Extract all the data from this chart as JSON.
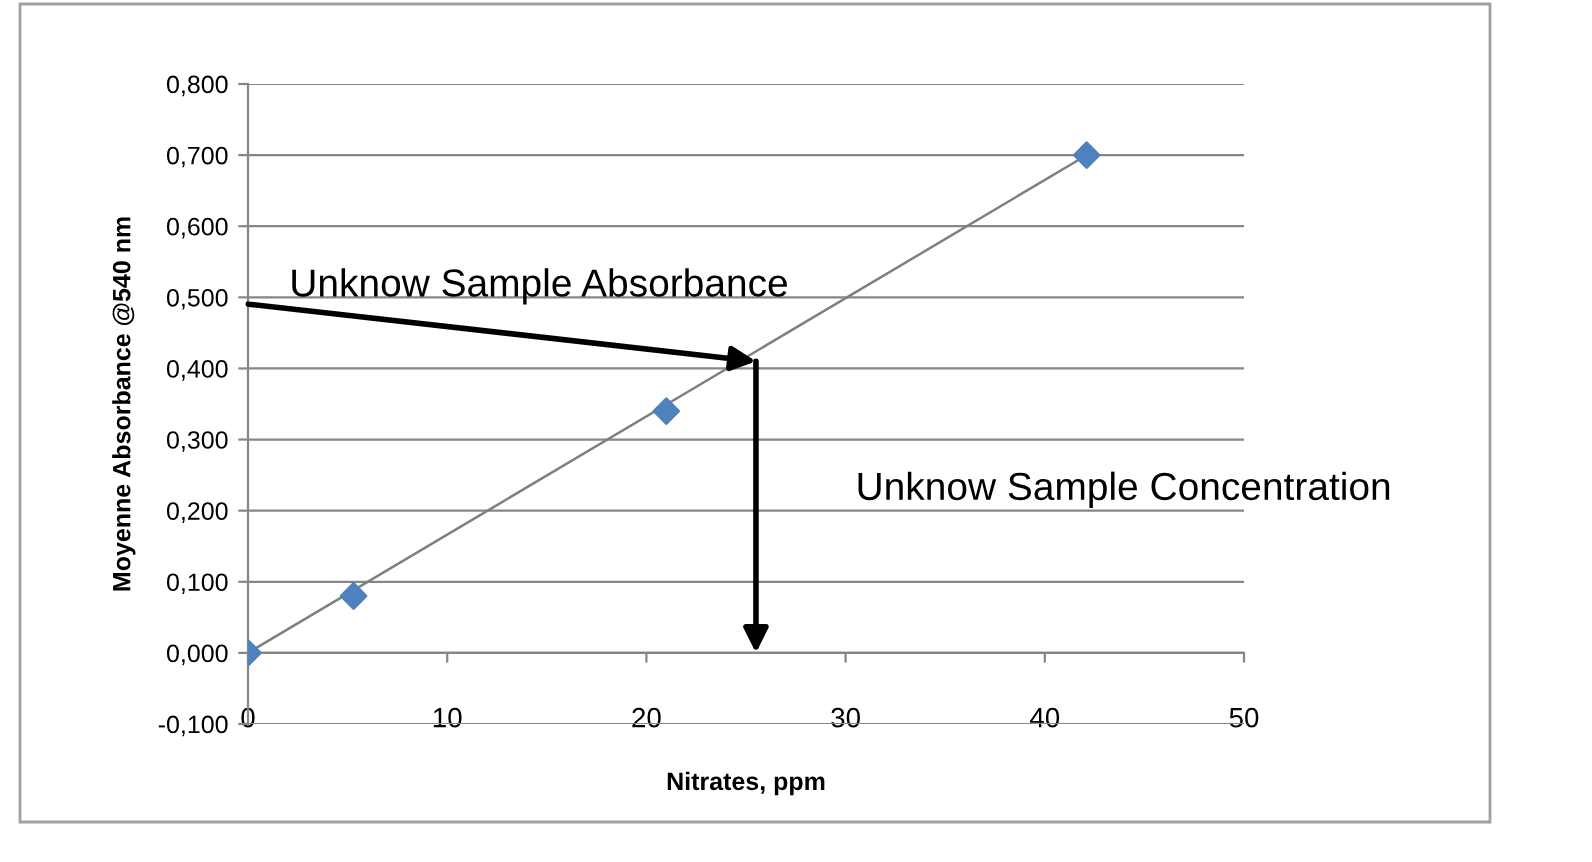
{
  "chart_data": {
    "type": "scatter",
    "xlabel": "Nitrates, ppm",
    "ylabel": "Moyenne Absorbance @540 nm",
    "series": [
      {
        "color": "#4f81bd",
        "marker": "diamond",
        "x": [
          0,
          5.3,
          21,
          42.1
        ],
        "values": [
          0,
          0.08,
          0.34,
          0.7
        ]
      },
      {
        "type": "line",
        "color": "#7f7f7f",
        "marker": "none",
        "x": [
          0,
          42.1
        ],
        "values": [
          0,
          0.7
        ]
      }
    ],
    "xlim": [
      0,
      50
    ],
    "xticks": [
      0,
      10,
      20,
      30,
      40,
      50
    ],
    "ylim": [
      -0.1,
      0.8
    ],
    "yticks": [
      {
        "value": -0.1,
        "label": "-0,100"
      },
      {
        "value": 0,
        "label": "0,000"
      },
      {
        "value": 0.1,
        "label": "0,100"
      },
      {
        "value": 0.2,
        "label": "0,200"
      },
      {
        "value": 0.3,
        "label": "0,300"
      },
      {
        "value": 0.4,
        "label": "0,400"
      },
      {
        "value": 0.5,
        "label": "0,500"
      },
      {
        "value": 0.6,
        "label": "0,600"
      },
      {
        "value": 0.7,
        "label": "0,700"
      },
      {
        "value": 0.8,
        "label": "0,800"
      }
    ],
    "grid": "y",
    "annotations": [
      {
        "text": "Unknow Sample Absorbance",
        "x": 25.5,
        "y": 0.41
      },
      "Unknow Sample Concentration"
    ]
  }
}
